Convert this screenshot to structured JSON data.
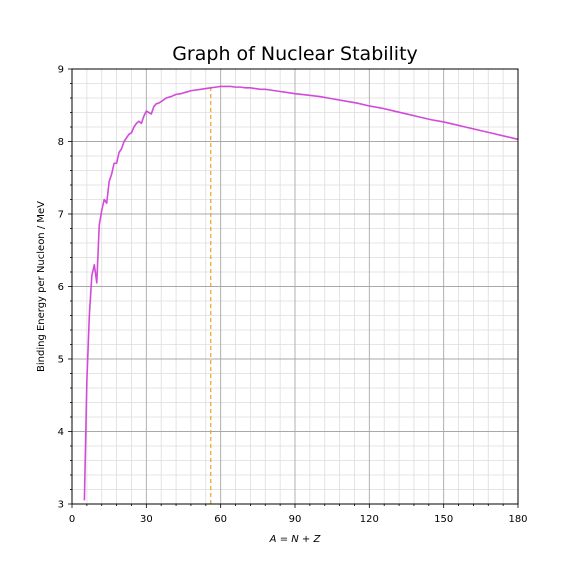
{
  "chart_data": {
    "type": "line",
    "title": "Graph of Nuclear Stability",
    "xlabel": "A = N + Z",
    "ylabel": "Binding Energy per Nucleon / MeV",
    "xlim": [
      0,
      180
    ],
    "ylim": [
      3,
      9
    ],
    "x_major_ticks": [
      "0",
      "30",
      "60",
      "90",
      "120",
      "150",
      "180"
    ],
    "y_major_ticks": [
      "3",
      "4",
      "5",
      "6",
      "7",
      "8",
      "9"
    ],
    "grid": true,
    "series": [
      {
        "color": "#d24bd8",
        "x": [
          5,
          6,
          7,
          8,
          9,
          10,
          11,
          12,
          13,
          14,
          15,
          16,
          17,
          18,
          19,
          20,
          21,
          22,
          23,
          24,
          25,
          26,
          27,
          28,
          29,
          30,
          31,
          32,
          33,
          34,
          35,
          36,
          38,
          40,
          42,
          44,
          46,
          48,
          50,
          52,
          54,
          56,
          58,
          60,
          62,
          64,
          66,
          68,
          70,
          72,
          74,
          76,
          78,
          80,
          82,
          84,
          86,
          88,
          90,
          95,
          100,
          105,
          110,
          115,
          120,
          125,
          130,
          135,
          140,
          145,
          150,
          155,
          160,
          165,
          170,
          175,
          180
        ],
        "y": [
          3.05,
          4.7,
          5.6,
          6.15,
          6.3,
          6.05,
          6.85,
          7.05,
          7.2,
          7.15,
          7.45,
          7.55,
          7.7,
          7.7,
          7.85,
          7.9,
          8.0,
          8.05,
          8.1,
          8.12,
          8.2,
          8.25,
          8.28,
          8.25,
          8.35,
          8.42,
          8.4,
          8.38,
          8.48,
          8.52,
          8.53,
          8.55,
          8.6,
          8.62,
          8.65,
          8.66,
          8.68,
          8.7,
          8.71,
          8.72,
          8.73,
          8.74,
          8.75,
          8.76,
          8.76,
          8.76,
          8.75,
          8.75,
          8.74,
          8.74,
          8.73,
          8.72,
          8.72,
          8.71,
          8.7,
          8.69,
          8.68,
          8.67,
          8.66,
          8.64,
          8.62,
          8.59,
          8.56,
          8.53,
          8.49,
          8.46,
          8.42,
          8.38,
          8.34,
          8.3,
          8.27,
          8.23,
          8.19,
          8.15,
          8.11,
          8.07,
          8.03
        ]
      }
    ],
    "annotations": [
      {
        "type": "vertical-dashed-line",
        "x": 56,
        "color": "#f0a020"
      }
    ]
  }
}
